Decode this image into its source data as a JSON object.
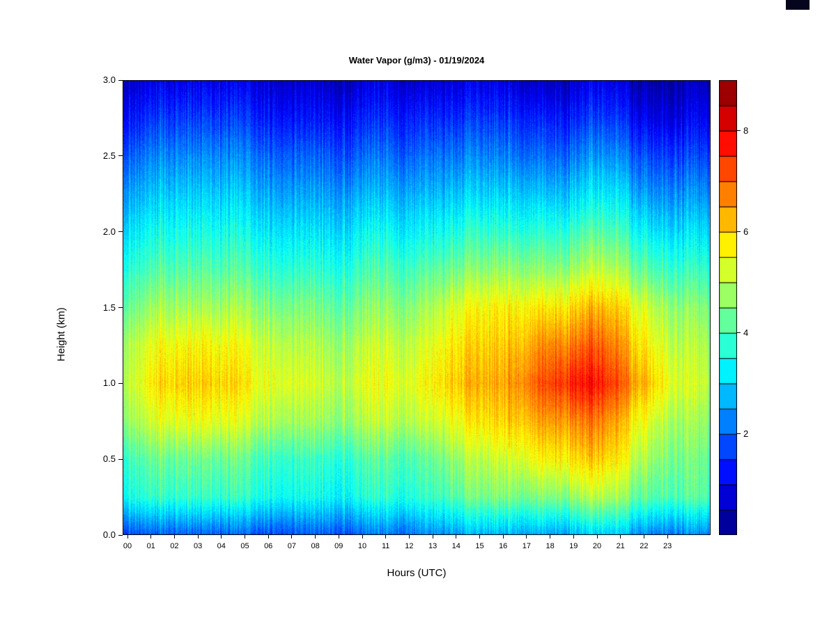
{
  "chart_data": {
    "type": "heatmap",
    "title": "Water Vapor (g/m3) - 01/19/2024",
    "xlabel": "Hours (UTC)",
    "ylabel": "Height (km)",
    "value_units": "g/m3",
    "colormap": "jet",
    "value_range": [
      0,
      9
    ],
    "colorbar_level_step": 0.5,
    "colorbar_ticks": [
      2,
      4,
      6,
      8
    ],
    "legend_position": "right-colorbar",
    "grid": false,
    "x_range_hours": [
      0,
      24
    ],
    "y_range_km": [
      0,
      3
    ],
    "x_hours": [
      0,
      1,
      2,
      3,
      4,
      5,
      6,
      7,
      8,
      9,
      10,
      11,
      12,
      13,
      14,
      15,
      16,
      17,
      18,
      19,
      20,
      21,
      22,
      23
    ],
    "x_tick_labels": [
      "00",
      "01",
      "02",
      "03",
      "04",
      "05",
      "06",
      "07",
      "08",
      "09",
      "10",
      "11",
      "12",
      "13",
      "14",
      "15",
      "16",
      "17",
      "18",
      "19",
      "20",
      "21",
      "22",
      "23"
    ],
    "y_tick_labels": [
      "0.0",
      "0.5",
      "1.0",
      "1.5",
      "2.0",
      "2.5",
      "3.0"
    ],
    "y_heights_km": [
      0.0,
      0.25,
      0.5,
      0.75,
      1.0,
      1.25,
      1.5,
      1.75,
      2.0,
      2.25,
      2.5,
      2.75,
      3.0
    ],
    "values_by_height": [
      [
        1.8,
        1.8,
        1.9,
        1.9,
        1.8,
        1.8,
        1.9,
        1.9,
        2.0,
        2.0,
        2.1,
        2.2,
        2.4,
        2.6,
        2.7,
        2.7,
        2.8,
        2.8,
        2.8,
        2.7,
        2.6,
        2.5,
        2.3,
        2.2
      ],
      [
        3.6,
        3.7,
        3.8,
        3.8,
        3.7,
        3.6,
        3.6,
        3.5,
        3.5,
        3.6,
        3.7,
        3.8,
        3.9,
        4.2,
        4.4,
        4.5,
        4.6,
        4.8,
        4.8,
        4.7,
        4.5,
        4.4,
        4.2,
        4.0
      ],
      [
        4.0,
        4.2,
        4.3,
        4.3,
        4.2,
        4.0,
        4.0,
        3.9,
        3.9,
        4.0,
        4.1,
        4.2,
        4.3,
        4.8,
        5.0,
        5.2,
        5.6,
        6.0,
        6.0,
        5.8,
        5.4,
        5.0,
        4.6,
        4.2
      ],
      [
        4.8,
        5.2,
        5.4,
        5.4,
        5.2,
        5.0,
        5.0,
        4.8,
        4.8,
        4.9,
        5.0,
        5.1,
        5.2,
        5.6,
        5.8,
        6.0,
        6.4,
        6.8,
        6.8,
        6.5,
        6.0,
        5.6,
        5.0,
        4.6
      ],
      [
        5.2,
        5.8,
        6.0,
        6.0,
        5.8,
        5.5,
        5.5,
        5.3,
        5.2,
        5.3,
        5.4,
        5.5,
        5.7,
        6.2,
        6.3,
        6.4,
        7.0,
        7.6,
        7.8,
        7.4,
        6.8,
        6.4,
        5.5,
        5.0
      ],
      [
        5.0,
        5.4,
        5.6,
        5.6,
        5.4,
        5.2,
        5.2,
        5.0,
        4.9,
        5.0,
        5.1,
        5.2,
        5.4,
        5.9,
        6.0,
        6.1,
        6.5,
        7.0,
        7.0,
        6.8,
        6.3,
        5.9,
        5.2,
        4.8
      ],
      [
        4.4,
        4.7,
        4.8,
        4.8,
        4.7,
        4.6,
        4.6,
        4.5,
        4.4,
        4.5,
        4.6,
        4.7,
        4.9,
        5.4,
        5.6,
        5.7,
        5.9,
        6.1,
        6.1,
        6.0,
        5.7,
        5.4,
        4.8,
        4.4
      ],
      [
        3.8,
        4.0,
        4.1,
        4.1,
        4.0,
        3.9,
        3.9,
        3.8,
        3.8,
        3.9,
        4.0,
        4.1,
        4.2,
        4.5,
        4.6,
        4.7,
        4.8,
        4.9,
        4.9,
        4.8,
        4.6,
        4.4,
        4.0,
        3.7
      ],
      [
        3.2,
        3.4,
        3.5,
        3.5,
        3.4,
        3.3,
        3.3,
        3.2,
        3.2,
        3.3,
        3.4,
        3.4,
        3.5,
        3.7,
        3.8,
        3.8,
        3.9,
        4.0,
        4.0,
        3.9,
        3.7,
        3.5,
        3.2,
        3.0
      ],
      [
        2.6,
        2.8,
        2.9,
        2.9,
        2.8,
        2.7,
        2.7,
        2.6,
        2.6,
        2.7,
        2.7,
        2.8,
        2.8,
        3.0,
        3.0,
        3.0,
        3.1,
        3.1,
        3.1,
        3.0,
        2.9,
        2.7,
        2.5,
        2.3
      ],
      [
        2.0,
        2.2,
        2.3,
        2.3,
        2.2,
        2.1,
        2.1,
        2.0,
        2.0,
        2.0,
        2.1,
        2.1,
        2.2,
        2.3,
        2.3,
        2.3,
        2.3,
        2.3,
        2.3,
        2.2,
        2.1,
        2.0,
        1.8,
        1.6
      ],
      [
        1.3,
        1.5,
        1.6,
        1.6,
        1.5,
        1.4,
        1.4,
        1.3,
        1.3,
        1.4,
        1.4,
        1.5,
        1.5,
        1.6,
        1.6,
        1.6,
        1.6,
        1.6,
        1.5,
        1.4,
        1.3,
        1.2,
        1.0,
        0.9
      ],
      [
        0.7,
        0.8,
        0.9,
        0.9,
        0.8,
        0.8,
        0.8,
        0.7,
        0.7,
        0.7,
        0.8,
        0.8,
        0.8,
        0.9,
        0.9,
        0.9,
        0.8,
        0.8,
        0.8,
        0.7,
        0.6,
        0.6,
        0.5,
        0.4
      ]
    ]
  },
  "artifact": {
    "top_right_swatch_color": "#05051e"
  }
}
